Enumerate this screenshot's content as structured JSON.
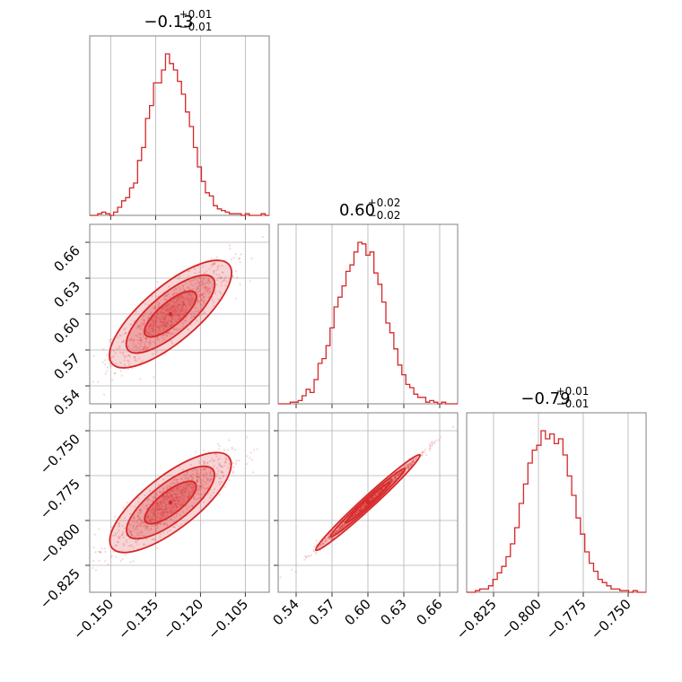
{
  "chart_data": {
    "type": "corner",
    "color": "#d62728",
    "grid": true,
    "parameters": [
      {
        "median": -0.13,
        "err_plus": 0.01,
        "err_minus": 0.01,
        "title_main": "−0.13",
        "title_sup": "+0.01",
        "title_sub": "−0.01",
        "range": [
          -0.157,
          -0.097
        ],
        "ticks": [
          -0.15,
          -0.135,
          -0.12,
          -0.105
        ],
        "tick_labels": [
          "−0.150",
          "−0.135",
          "−0.120",
          "−0.105"
        ],
        "hist": [
          0,
          0,
          0.01,
          0.02,
          0.01,
          0,
          0.02,
          0.05,
          0.09,
          0.11,
          0.17,
          0.2,
          0.34,
          0.42,
          0.6,
          0.68,
          0.82,
          0.82,
          0.9,
          1.0,
          0.94,
          0.9,
          0.83,
          0.75,
          0.64,
          0.55,
          0.42,
          0.3,
          0.21,
          0.14,
          0.12,
          0.06,
          0.04,
          0.03,
          0.02,
          0.01,
          0.01,
          0.01,
          0,
          0.01,
          0,
          0,
          0,
          0.01,
          0
        ]
      },
      {
        "median": 0.6,
        "err_plus": 0.02,
        "err_minus": 0.02,
        "title_main": "0.60",
        "title_sup": "+0.02",
        "title_sub": "−0.02",
        "range": [
          0.525,
          0.675
        ],
        "ticks": [
          0.54,
          0.57,
          0.6,
          0.63,
          0.66
        ],
        "tick_labels": [
          "0.54",
          "0.57",
          "0.60",
          "0.63",
          "0.66"
        ],
        "hist": [
          0,
          0,
          0,
          0.01,
          0.01,
          0.02,
          0.05,
          0.09,
          0.07,
          0.15,
          0.25,
          0.28,
          0.36,
          0.47,
          0.6,
          0.66,
          0.73,
          0.82,
          0.86,
          0.94,
          1.0,
          0.99,
          0.92,
          0.94,
          0.81,
          0.74,
          0.63,
          0.5,
          0.44,
          0.34,
          0.24,
          0.18,
          0.12,
          0.1,
          0.06,
          0.04,
          0.04,
          0.01,
          0.02,
          0.01,
          0,
          0.01,
          0,
          0,
          0
        ]
      },
      {
        "median": -0.79,
        "err_plus": 0.01,
        "err_minus": 0.01,
        "title_main": "−0.79",
        "title_sup": "+0.01",
        "title_sub": "−0.01",
        "range": [
          -0.84,
          -0.74
        ],
        "ticks": [
          -0.825,
          -0.8,
          -0.775,
          -0.75
        ],
        "tick_labels": [
          "−0.825",
          "−0.800",
          "−0.775",
          "−0.750"
        ],
        "hist": [
          0,
          0,
          0.01,
          0.02,
          0.02,
          0.04,
          0.08,
          0.12,
          0.16,
          0.22,
          0.3,
          0.4,
          0.55,
          0.67,
          0.8,
          0.88,
          0.91,
          1.0,
          0.95,
          0.98,
          0.92,
          0.95,
          0.85,
          0.72,
          0.6,
          0.46,
          0.36,
          0.25,
          0.18,
          0.13,
          0.08,
          0.06,
          0.04,
          0.02,
          0.02,
          0.01,
          0.01,
          0,
          0.01,
          0,
          0
        ]
      }
    ],
    "pairs": [
      {
        "x_param": 0,
        "y_param": 1,
        "panel": "row1-col0"
      },
      {
        "x_param": 0,
        "y_param": 2,
        "panel": "row2-col0"
      },
      {
        "x_param": 1,
        "y_param": 2,
        "panel": "row2-col1"
      }
    ]
  }
}
